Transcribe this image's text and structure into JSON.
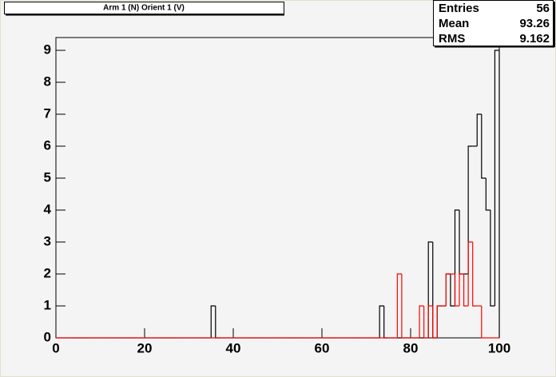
{
  "chart_data": {
    "type": "histogram",
    "title": "Arm 1 (N) Orient 1 (V)",
    "bins": [
      0,
      1,
      2,
      3,
      4,
      5,
      6,
      7,
      8,
      9,
      10,
      11,
      12,
      13,
      14,
      15,
      16,
      17,
      18,
      19,
      20,
      21,
      22,
      23,
      24,
      25,
      26,
      27,
      28,
      29,
      30,
      31,
      32,
      33,
      34,
      35,
      36,
      37,
      38,
      39,
      40,
      41,
      42,
      43,
      44,
      45,
      46,
      47,
      48,
      49,
      50,
      51,
      52,
      53,
      54,
      55,
      56,
      57,
      58,
      59,
      60,
      61,
      62,
      63,
      64,
      65,
      66,
      67,
      68,
      69,
      70,
      71,
      72,
      73,
      74,
      75,
      76,
      77,
      78,
      79,
      80,
      81,
      82,
      83,
      84,
      85,
      86,
      87,
      88,
      89,
      90,
      91,
      92,
      93,
      94,
      95,
      96,
      97,
      98,
      99,
      100
    ],
    "series": [
      {
        "color": "#000000",
        "values": [
          0,
          0,
          0,
          0,
          0,
          0,
          0,
          0,
          0,
          0,
          0,
          0,
          0,
          0,
          0,
          0,
          0,
          0,
          0,
          0,
          0,
          0,
          0,
          0,
          0,
          0,
          0,
          0,
          0,
          0,
          0,
          0,
          0,
          0,
          0,
          1,
          0,
          0,
          0,
          0,
          0,
          0,
          0,
          0,
          0,
          0,
          0,
          0,
          0,
          0,
          0,
          0,
          0,
          0,
          0,
          0,
          0,
          0,
          0,
          0,
          0,
          0,
          0,
          0,
          0,
          0,
          0,
          0,
          0,
          0,
          0,
          0,
          0,
          1,
          0,
          0,
          0,
          0,
          0,
          0,
          0,
          0,
          0,
          0,
          3,
          0,
          1,
          1,
          2,
          1,
          4,
          2,
          2,
          6,
          6,
          7,
          5,
          4,
          1,
          9
        ]
      },
      {
        "color": "#ff0000",
        "values": [
          0,
          0,
          0,
          0,
          0,
          0,
          0,
          0,
          0,
          0,
          0,
          0,
          0,
          0,
          0,
          0,
          0,
          0,
          0,
          0,
          0,
          0,
          0,
          0,
          0,
          0,
          0,
          0,
          0,
          0,
          0,
          0,
          0,
          0,
          0,
          0,
          0,
          0,
          0,
          0,
          0,
          0,
          0,
          0,
          0,
          0,
          0,
          0,
          0,
          0,
          0,
          0,
          0,
          0,
          0,
          0,
          0,
          0,
          0,
          0,
          0,
          0,
          0,
          0,
          0,
          0,
          0,
          0,
          0,
          0,
          0,
          0,
          0,
          0,
          0,
          0,
          0,
          2,
          0,
          0,
          0,
          0,
          1,
          0,
          1,
          0,
          1,
          1,
          2,
          2,
          1,
          2,
          1,
          3,
          1,
          1,
          0,
          0,
          0,
          0
        ]
      }
    ],
    "xlim": [
      0,
      100
    ],
    "xticks": [
      0,
      20,
      40,
      60,
      80,
      100
    ],
    "ylim": [
      0,
      9.4
    ],
    "yticks": [
      0,
      1,
      2,
      3,
      4,
      5,
      6,
      7,
      8,
      9
    ],
    "stats": [
      [
        "Entries",
        "56"
      ],
      [
        "Mean",
        "93.26"
      ],
      [
        "RMS",
        "9.162"
      ]
    ]
  }
}
